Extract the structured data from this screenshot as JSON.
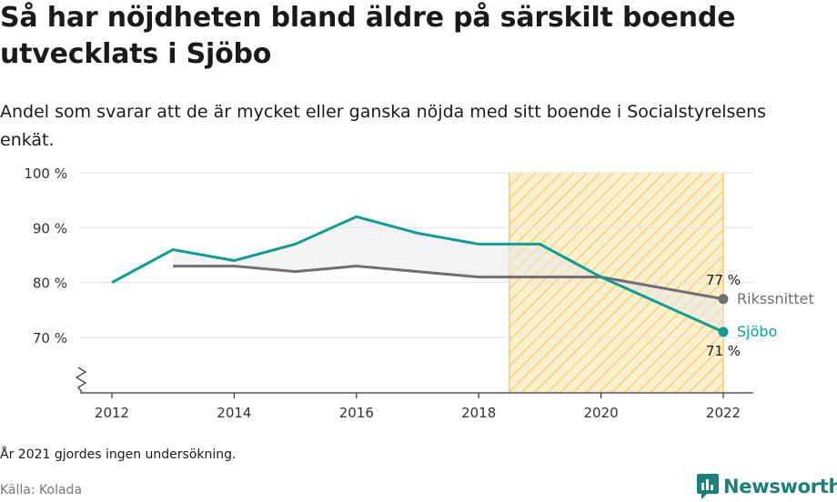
{
  "header": {
    "title": "Så har nöjdheten bland äldre på särskilt boende utvecklats i Sjöbo",
    "subtitle": "Andel som svarar att de är mycket eller ganska nöjda med sitt boende i Socialstyrelsens enkät."
  },
  "footer": {
    "note": "År 2021 gjordes ingen undersökning.",
    "source": "Källa: Kolada",
    "brand": "Newsworthy",
    "brand_icon": "newsworthy-chart-icon"
  },
  "colors": {
    "sjobo": "#0e9e91",
    "riks": "#6f6e75",
    "highlight_stroke": "#f2c04c",
    "highlight_fill": "#fbe3a6",
    "brand": "#1b7f7a"
  },
  "chart_data": {
    "type": "line",
    "x": [
      2012,
      2013,
      2014,
      2015,
      2016,
      2017,
      2018,
      2019,
      2020,
      2022
    ],
    "xticks": [
      2012,
      2014,
      2016,
      2018,
      2020,
      2022
    ],
    "xtick_labels": [
      "2012",
      "2014",
      "2016",
      "2018",
      "2020",
      "2022"
    ],
    "ylim": [
      60,
      100
    ],
    "yticks": [
      70,
      80,
      90,
      100
    ],
    "ytick_labels": [
      "70 %",
      "80 %",
      "90 %",
      "100 %"
    ],
    "axis_break": true,
    "grid": true,
    "highlight_range": [
      2018.5,
      2022
    ],
    "series": [
      {
        "name": "Sjöbo",
        "key": "sjobo",
        "values": [
          80,
          86,
          84,
          87,
          92,
          89,
          87,
          87,
          81,
          71
        ],
        "end_value_label": "71 %"
      },
      {
        "name": "Rikssnittet",
        "key": "riks",
        "values": [
          null,
          83,
          83,
          82,
          83,
          82,
          81,
          81,
          81,
          77
        ],
        "end_value_label": "77 %"
      }
    ]
  }
}
